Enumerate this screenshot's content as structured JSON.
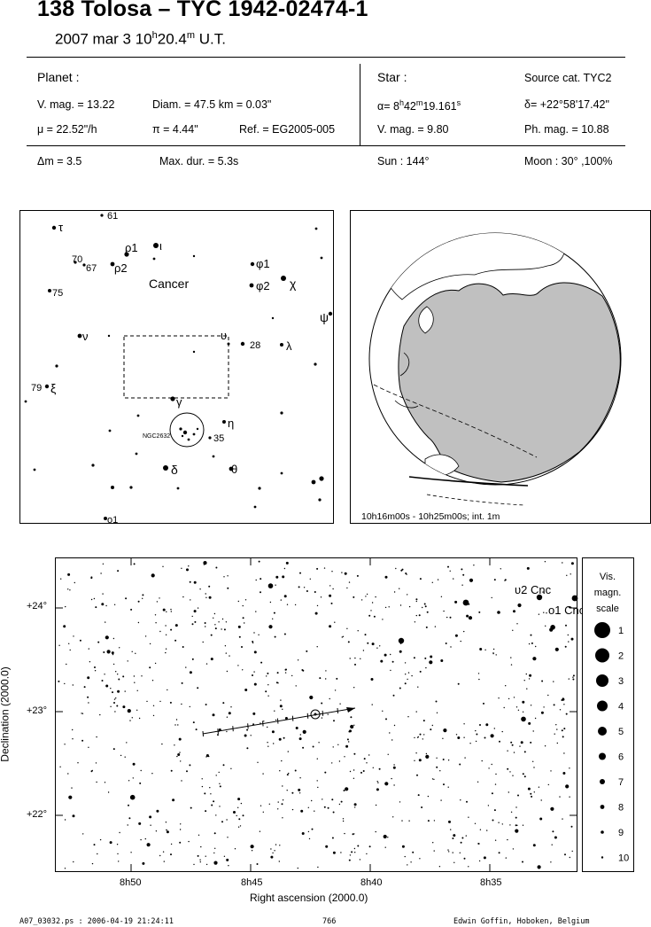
{
  "title": "138 Tolosa  –  TYC 1942-02474-1",
  "subtitle": {
    "date": "2007 mar  3  10",
    "h_unit": "h",
    "minutes": "20.4",
    "m_unit": "m",
    "tz": " U.T."
  },
  "planet": {
    "heading": "Planet :",
    "vmag": "V. mag. = 13.22",
    "diam": "Diam. = 47.5 km = 0.03\"",
    "mu": "μ =  22.52\"/h",
    "pi": "π =  4.44\"",
    "ref": "Ref. = EG2005-005"
  },
  "star": {
    "heading": "Star :",
    "source": "Source cat.  TYC2",
    "alpha_label": "α=  8",
    "alpha_h": "h",
    "alpha_min": "42",
    "alpha_m": "m",
    "alpha_sec": "19.161",
    "alpha_s": "s",
    "delta": "δ= +22°58'17.42\"",
    "vmag": "V. mag. =  9.80",
    "phmag": "Ph. mag. = 10.88"
  },
  "summary": {
    "dm": "Δm = 3.5",
    "maxdur": "Max. dur. = 5.3s",
    "sun": "Sun : 144°",
    "moon": "Moon :  30° ,100%"
  },
  "finder": {
    "constellation": "Cancer",
    "ngc_label": "NGC2632",
    "star_labels": [
      "61",
      "τ",
      "ρ1",
      "ι",
      "70",
      "67",
      "ρ2",
      "φ1",
      "φ2",
      "χ",
      "75",
      "υ",
      "28",
      "ν",
      "λ",
      "ψ",
      "79",
      "ξ",
      "γ",
      "η",
      "35",
      "δ",
      "θ",
      "ο1"
    ]
  },
  "globe": {
    "caption": "10h16m00s - 10h25m00s; int.  1m"
  },
  "chart": {
    "ylabel": "Declination (2000.0)",
    "xlabel": "Right ascension (2000.0)",
    "y_ticks": [
      "+24°",
      "+23°",
      "+22°"
    ],
    "x_ticks": [
      "8h50",
      "8h45",
      "8h40",
      "8h35"
    ],
    "star_labels": [
      "υ2 Cnc",
      "ο1 Cnc"
    ]
  },
  "scale": {
    "title": [
      "Vis.",
      "magn.",
      "scale"
    ],
    "labels": [
      "1",
      "2",
      "3",
      "4",
      "5",
      "6",
      "7",
      "8",
      "9",
      "10"
    ]
  },
  "footer": {
    "file": "A07_03032.ps : 2006-04-19 21:24:11",
    "page": "766",
    "author": "Edwin Goffin, Hoboken, Belgium"
  }
}
